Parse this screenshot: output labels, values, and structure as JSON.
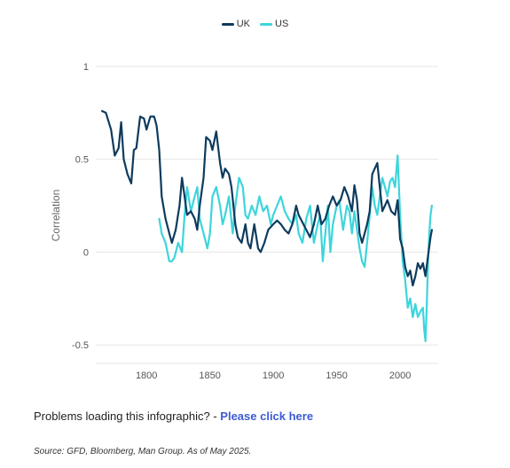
{
  "chart_data": {
    "type": "line",
    "ylabel": "Correlation",
    "xlim": [
      1760,
      2030
    ],
    "ylim": [
      -0.6,
      1.0
    ],
    "x_ticks": [
      1800,
      1850,
      1900,
      1950,
      2000
    ],
    "y_ticks": [
      1,
      0.5,
      0,
      -0.5
    ],
    "y_tick_labels": [
      "1",
      "0.5",
      "0",
      "-0.5"
    ],
    "grid": true,
    "legend_position": "top-center",
    "series": [
      {
        "name": "UK",
        "color": "#0d3b5e",
        "points": [
          [
            1765,
            0.76
          ],
          [
            1768,
            0.75
          ],
          [
            1772,
            0.66
          ],
          [
            1775,
            0.52
          ],
          [
            1778,
            0.56
          ],
          [
            1780,
            0.7
          ],
          [
            1782,
            0.5
          ],
          [
            1785,
            0.42
          ],
          [
            1788,
            0.37
          ],
          [
            1790,
            0.55
          ],
          [
            1792,
            0.56
          ],
          [
            1795,
            0.73
          ],
          [
            1798,
            0.72
          ],
          [
            1800,
            0.66
          ],
          [
            1803,
            0.73
          ],
          [
            1806,
            0.73
          ],
          [
            1808,
            0.68
          ],
          [
            1810,
            0.55
          ],
          [
            1812,
            0.3
          ],
          [
            1815,
            0.18
          ],
          [
            1818,
            0.1
          ],
          [
            1820,
            0.05
          ],
          [
            1823,
            0.12
          ],
          [
            1826,
            0.25
          ],
          [
            1828,
            0.4
          ],
          [
            1830,
            0.3
          ],
          [
            1832,
            0.2
          ],
          [
            1835,
            0.22
          ],
          [
            1838,
            0.18
          ],
          [
            1840,
            0.12
          ],
          [
            1842,
            0.25
          ],
          [
            1845,
            0.4
          ],
          [
            1847,
            0.62
          ],
          [
            1850,
            0.6
          ],
          [
            1852,
            0.55
          ],
          [
            1855,
            0.65
          ],
          [
            1858,
            0.48
          ],
          [
            1860,
            0.4
          ],
          [
            1862,
            0.45
          ],
          [
            1865,
            0.42
          ],
          [
            1867,
            0.35
          ],
          [
            1870,
            0.15
          ],
          [
            1872,
            0.08
          ],
          [
            1875,
            0.05
          ],
          [
            1878,
            0.15
          ],
          [
            1880,
            0.05
          ],
          [
            1882,
            0.02
          ],
          [
            1885,
            0.15
          ],
          [
            1888,
            0.02
          ],
          [
            1890,
            0.0
          ],
          [
            1893,
            0.05
          ],
          [
            1896,
            0.12
          ],
          [
            1900,
            0.15
          ],
          [
            1903,
            0.17
          ],
          [
            1906,
            0.15
          ],
          [
            1909,
            0.12
          ],
          [
            1912,
            0.1
          ],
          [
            1915,
            0.15
          ],
          [
            1918,
            0.25
          ],
          [
            1920,
            0.2
          ],
          [
            1923,
            0.16
          ],
          [
            1926,
            0.12
          ],
          [
            1929,
            0.08
          ],
          [
            1932,
            0.15
          ],
          [
            1935,
            0.25
          ],
          [
            1938,
            0.15
          ],
          [
            1941,
            0.18
          ],
          [
            1944,
            0.25
          ],
          [
            1947,
            0.3
          ],
          [
            1950,
            0.25
          ],
          [
            1953,
            0.28
          ],
          [
            1956,
            0.35
          ],
          [
            1959,
            0.3
          ],
          [
            1962,
            0.22
          ],
          [
            1964,
            0.36
          ],
          [
            1966,
            0.28
          ],
          [
            1968,
            0.1
          ],
          [
            1970,
            0.05
          ],
          [
            1972,
            0.1
          ],
          [
            1974,
            0.15
          ],
          [
            1976,
            0.22
          ],
          [
            1978,
            0.42
          ],
          [
            1980,
            0.45
          ],
          [
            1982,
            0.48
          ],
          [
            1984,
            0.35
          ],
          [
            1986,
            0.22
          ],
          [
            1988,
            0.25
          ],
          [
            1990,
            0.28
          ],
          [
            1993,
            0.22
          ],
          [
            1996,
            0.2
          ],
          [
            1998,
            0.28
          ],
          [
            1999,
            0.18
          ],
          [
            2000,
            0.07
          ],
          [
            2002,
            0.02
          ],
          [
            2004,
            -0.08
          ],
          [
            2006,
            -0.13
          ],
          [
            2008,
            -0.1
          ],
          [
            2010,
            -0.18
          ],
          [
            2012,
            -0.13
          ],
          [
            2014,
            -0.06
          ],
          [
            2016,
            -0.09
          ],
          [
            2018,
            -0.06
          ],
          [
            2020,
            -0.13
          ],
          [
            2022,
            -0.02
          ],
          [
            2024,
            0.08
          ],
          [
            2025,
            0.12
          ]
        ]
      },
      {
        "name": "US",
        "color": "#3dd5dc",
        "points": [
          [
            1810,
            0.18
          ],
          [
            1812,
            0.1
          ],
          [
            1815,
            0.05
          ],
          [
            1818,
            -0.05
          ],
          [
            1820,
            -0.05
          ],
          [
            1822,
            -0.03
          ],
          [
            1825,
            0.05
          ],
          [
            1828,
            0.0
          ],
          [
            1830,
            0.2
          ],
          [
            1832,
            0.35
          ],
          [
            1835,
            0.22
          ],
          [
            1838,
            0.3
          ],
          [
            1840,
            0.35
          ],
          [
            1842,
            0.18
          ],
          [
            1845,
            0.1
          ],
          [
            1848,
            0.02
          ],
          [
            1850,
            0.1
          ],
          [
            1852,
            0.3
          ],
          [
            1855,
            0.35
          ],
          [
            1858,
            0.25
          ],
          [
            1860,
            0.15
          ],
          [
            1862,
            0.2
          ],
          [
            1865,
            0.3
          ],
          [
            1868,
            0.1
          ],
          [
            1870,
            0.25
          ],
          [
            1873,
            0.4
          ],
          [
            1876,
            0.35
          ],
          [
            1878,
            0.2
          ],
          [
            1880,
            0.18
          ],
          [
            1883,
            0.25
          ],
          [
            1886,
            0.2
          ],
          [
            1889,
            0.3
          ],
          [
            1892,
            0.22
          ],
          [
            1895,
            0.25
          ],
          [
            1898,
            0.15
          ],
          [
            1900,
            0.2
          ],
          [
            1903,
            0.25
          ],
          [
            1906,
            0.3
          ],
          [
            1909,
            0.22
          ],
          [
            1912,
            0.18
          ],
          [
            1915,
            0.15
          ],
          [
            1918,
            0.2
          ],
          [
            1920,
            0.1
          ],
          [
            1923,
            0.05
          ],
          [
            1926,
            0.18
          ],
          [
            1929,
            0.25
          ],
          [
            1932,
            0.05
          ],
          [
            1935,
            0.15
          ],
          [
            1937,
            0.2
          ],
          [
            1939,
            -0.05
          ],
          [
            1941,
            0.1
          ],
          [
            1943,
            0.25
          ],
          [
            1945,
            0.0
          ],
          [
            1947,
            0.15
          ],
          [
            1950,
            0.25
          ],
          [
            1952,
            0.28
          ],
          [
            1955,
            0.12
          ],
          [
            1958,
            0.25
          ],
          [
            1960,
            0.22
          ],
          [
            1962,
            0.1
          ],
          [
            1964,
            0.22
          ],
          [
            1966,
            0.12
          ],
          [
            1968,
            0.02
          ],
          [
            1970,
            -0.05
          ],
          [
            1972,
            -0.08
          ],
          [
            1974,
            0.05
          ],
          [
            1976,
            0.2
          ],
          [
            1978,
            0.35
          ],
          [
            1980,
            0.25
          ],
          [
            1982,
            0.2
          ],
          [
            1984,
            0.3
          ],
          [
            1986,
            0.4
          ],
          [
            1988,
            0.35
          ],
          [
            1990,
            0.3
          ],
          [
            1992,
            0.38
          ],
          [
            1994,
            0.4
          ],
          [
            1996,
            0.35
          ],
          [
            1998,
            0.52
          ],
          [
            2000,
            0.2
          ],
          [
            2002,
            -0.05
          ],
          [
            2004,
            -0.15
          ],
          [
            2006,
            -0.3
          ],
          [
            2008,
            -0.25
          ],
          [
            2010,
            -0.35
          ],
          [
            2012,
            -0.28
          ],
          [
            2014,
            -0.35
          ],
          [
            2016,
            -0.32
          ],
          [
            2018,
            -0.3
          ],
          [
            2019,
            -0.42
          ],
          [
            2020,
            -0.48
          ],
          [
            2021,
            -0.3
          ],
          [
            2022,
            -0.05
          ],
          [
            2023,
            0.1
          ],
          [
            2024,
            0.2
          ],
          [
            2025,
            0.25
          ]
        ]
      }
    ]
  },
  "footer": {
    "problem_text": "Problems loading this infographic? - ",
    "link_text": "Please click here",
    "source": "Source: GFD, Bloomberg, Man Group. As of May 2025."
  }
}
